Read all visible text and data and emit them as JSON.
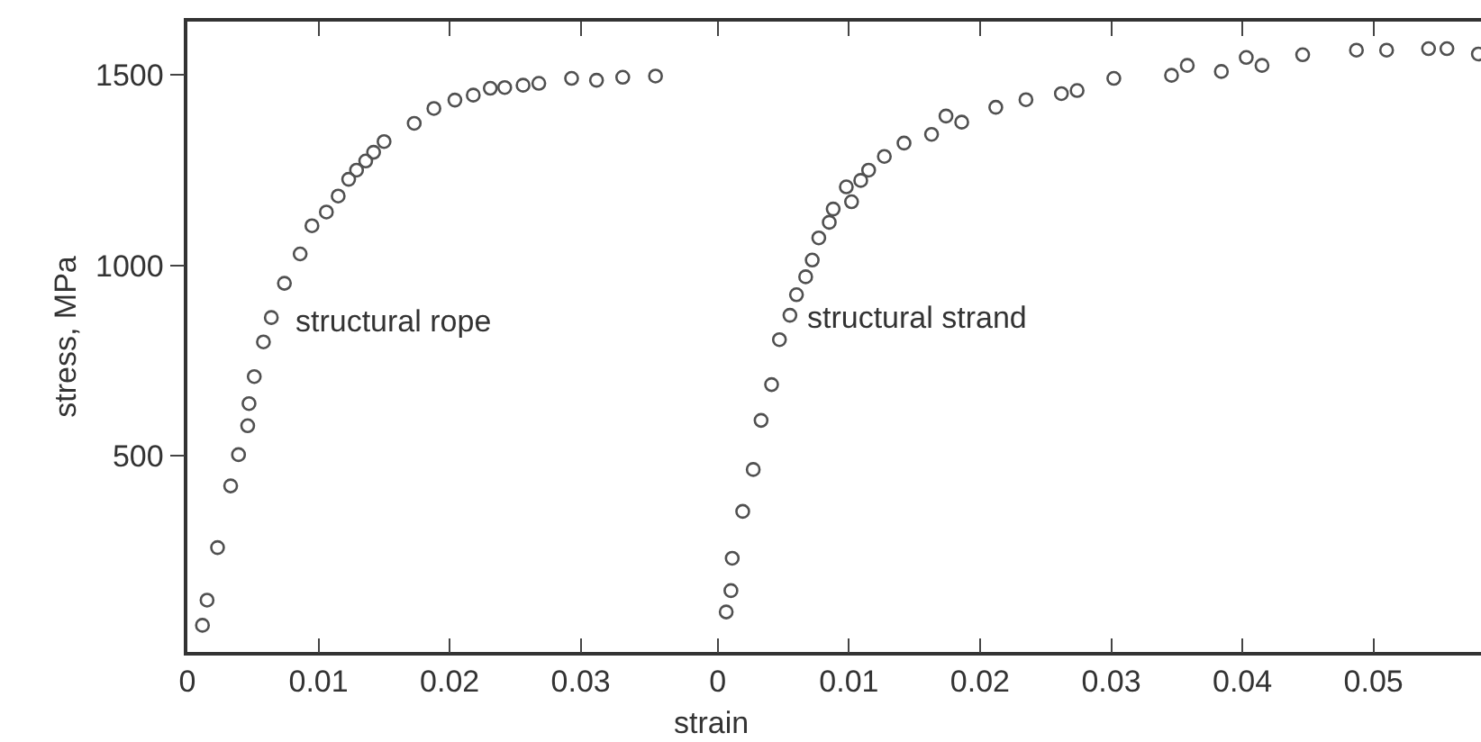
{
  "chart_data": [
    {
      "type": "scatter",
      "xlabel": "strain",
      "ylabel": "stress, MPa",
      "marker": "circle",
      "xlim": [
        0,
        0.04
      ],
      "xticks": [
        0,
        0.01,
        0.02,
        0.03
      ],
      "ylim": [
        -15,
        1640
      ],
      "yticks": [
        500,
        1000,
        1500
      ],
      "annotations": [
        "structural rope"
      ],
      "series": [
        {
          "color": "#505050",
          "x": [
            0.00115,
            0.0015,
            0.0023,
            0.0033,
            0.0039,
            0.0046,
            0.0047,
            0.0051,
            0.0058,
            0.0064,
            0.0074,
            0.0086,
            0.0095,
            0.0106,
            0.0115,
            0.0123,
            0.0129,
            0.0136,
            0.0142,
            0.015,
            0.0173,
            0.0188,
            0.0204,
            0.0218,
            0.0231,
            0.0242,
            0.0256,
            0.0268,
            0.0293,
            0.0312,
            0.0332,
            0.0357
          ],
          "values": [
            55,
            121,
            259,
            421,
            503,
            579,
            637,
            708,
            799,
            863,
            953,
            1030,
            1104,
            1140,
            1182,
            1226,
            1250,
            1274,
            1297,
            1325,
            1373,
            1412,
            1434,
            1447,
            1465,
            1467,
            1473,
            1478,
            1491,
            1486,
            1494,
            1497
          ]
        }
      ]
    },
    {
      "type": "scatter",
      "marker": "circle",
      "tick_labels": "x",
      "xlim": [
        -0.00045,
        0.0582
      ],
      "xticks": [
        0,
        0.01,
        0.02,
        0.03,
        0.04,
        0.05
      ],
      "ylim": [
        -15,
        1640
      ],
      "yticks": [
        500,
        1000,
        1500
      ],
      "annotations": [
        "structural strand"
      ],
      "series": [
        {
          "color": "#505050",
          "x": [
            0.00064,
            0.001,
            0.0011,
            0.0019,
            0.0027,
            0.0033,
            0.0041,
            0.0047,
            0.0055,
            0.006,
            0.0067,
            0.0072,
            0.0077,
            0.0085,
            0.0088,
            0.0098,
            0.0102,
            0.0109,
            0.0115,
            0.0127,
            0.0142,
            0.0163,
            0.0174,
            0.0186,
            0.0212,
            0.0235,
            0.0262,
            0.0274,
            0.0302,
            0.0346,
            0.0358,
            0.0384,
            0.0403,
            0.0415,
            0.0446,
            0.0487,
            0.051,
            0.0542,
            0.0556,
            0.058
          ],
          "values": [
            90,
            146,
            231,
            354,
            464,
            593,
            687,
            805,
            869,
            923,
            970,
            1014,
            1072,
            1113,
            1148,
            1206,
            1167,
            1223,
            1250,
            1286,
            1321,
            1344,
            1392,
            1376,
            1415,
            1435,
            1451,
            1459,
            1491,
            1499,
            1525,
            1509,
            1546,
            1525,
            1553,
            1565,
            1565,
            1569,
            1569,
            1555
          ]
        }
      ]
    }
  ]
}
